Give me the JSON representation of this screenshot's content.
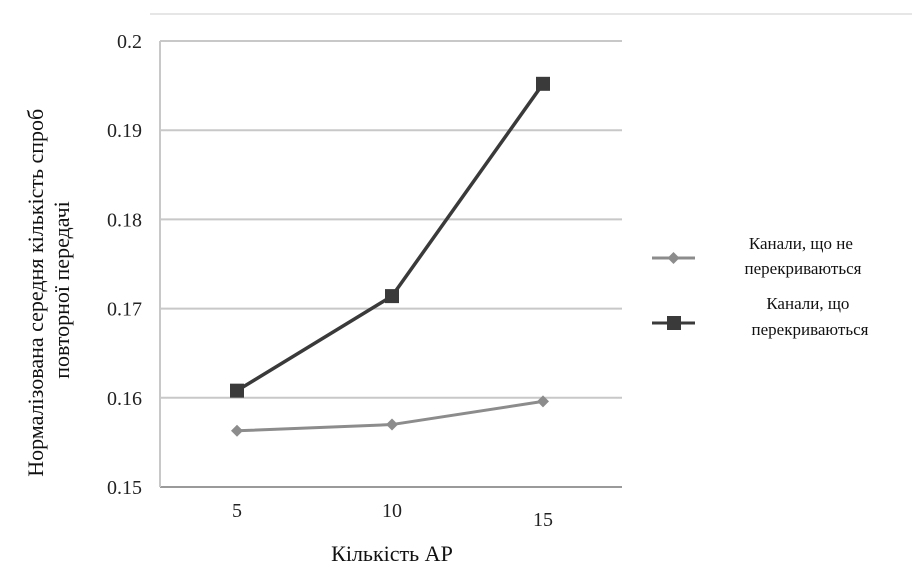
{
  "chart_data": {
    "type": "line",
    "xlabel": "Кількість АР",
    "ylabel_lines": [
      "Нормалізована середня кількість спроб",
      "повторної передачі"
    ],
    "categories": [
      "5",
      "10",
      "15"
    ],
    "x": [
      5,
      10,
      15
    ],
    "ylim": [
      0.15,
      0.2
    ],
    "yticks": [
      "0.15",
      "0.16",
      "0.17",
      "0.18",
      "0.19",
      "0.2"
    ],
    "ytick_values": [
      0.15,
      0.16,
      0.17,
      0.18,
      0.19,
      0.2
    ],
    "grid": true,
    "legend_position": "right",
    "series": [
      {
        "name_lines": [
          "Канали, що не",
          "перекриваються"
        ],
        "values": [
          0.1563,
          0.157,
          0.1596
        ],
        "color": "#8c8c8c",
        "marker": "diamond"
      },
      {
        "name_lines": [
          "Канали, що",
          "перекриваються"
        ],
        "values": [
          0.1608,
          0.1714,
          0.1952
        ],
        "color": "#3a3a3a",
        "marker": "square"
      }
    ]
  }
}
